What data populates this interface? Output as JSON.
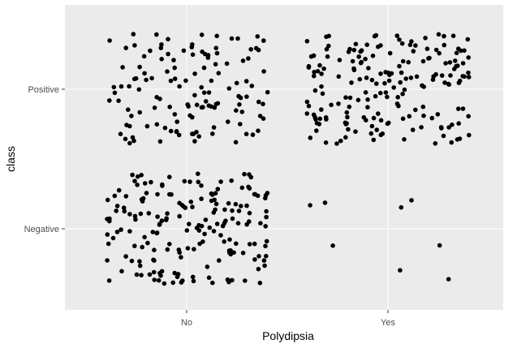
{
  "chart_data": {
    "type": "scatter",
    "jitter": true,
    "xlabel": "Polydipsia",
    "ylabel": "class",
    "x_categories": [
      "No",
      "Yes"
    ],
    "y_categories": [
      "Negative",
      "Positive"
    ],
    "grid": true,
    "legend": "none",
    "colors": {
      "panel": "#ebebeb",
      "grid": "#ffffff",
      "point": "#000000",
      "tick_text": "#4d4d4d",
      "tick_mark": "#333333"
    },
    "groups": [
      {
        "x": "No",
        "y": "Positive",
        "count": 130
      },
      {
        "x": "Yes",
        "y": "Positive",
        "count": 190
      },
      {
        "x": "No",
        "y": "Negative",
        "count": 185
      },
      {
        "x": "Yes",
        "y": "Negative",
        "count": 8
      }
    ]
  }
}
